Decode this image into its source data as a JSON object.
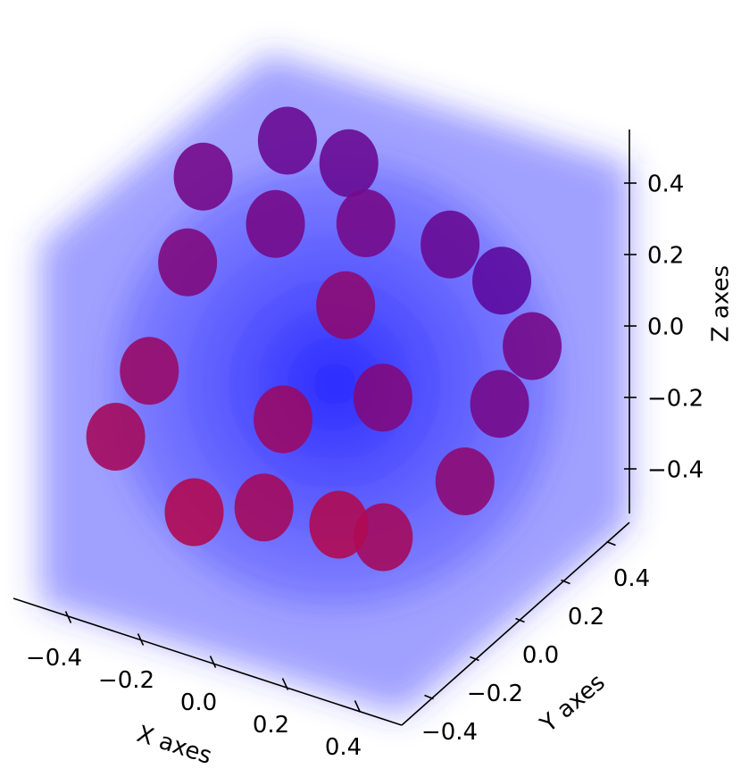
{
  "chart_data": {
    "type": "scatter3d",
    "x_label": "X axes",
    "y_label": "Y axes",
    "z_label": "Z axes",
    "xlim": [
      -0.5,
      0.5
    ],
    "ylim": [
      -0.5,
      0.5
    ],
    "zlim": [
      -0.5,
      0.5
    ],
    "xticks": [
      {
        "value": -0.4,
        "label": "−0.4"
      },
      {
        "value": -0.2,
        "label": "−0.2"
      },
      {
        "value": 0,
        "label": "0.0"
      },
      0.2,
      0.4
    ],
    "yticks": [
      {
        "value": -0.4,
        "label": "−0.4"
      },
      {
        "value": -0.2,
        "label": "−0.2"
      },
      {
        "value": 0,
        "label": "0.0"
      },
      0.2,
      0.4
    ],
    "zticks": [
      {
        "value": -0.4,
        "label": "−0.4"
      },
      {
        "value": -0.2,
        "label": "−0.2"
      },
      {
        "value": 0,
        "label": "0.0"
      },
      0.2,
      0.4
    ],
    "x": [
      0.21,
      -0.32,
      -0.15,
      0.13,
      -0.49,
      0.42,
      -0.29,
      -0.04,
      0.33,
      -0.47,
      0.07,
      0.03,
      0.36,
      -0.45,
      -0.08,
      -0.48,
      -0.07,
      0.26,
      -0.2,
      0.2
    ],
    "y": [
      0.4,
      0.3,
      0.3,
      0.3,
      0.2,
      0.2,
      0.2,
      0.2,
      0.2,
      0.1,
      0.1,
      0,
      0,
      -0.1,
      -0.1,
      -0.2,
      -0.2,
      -0.2,
      -0.3,
      -0.3
    ],
    "z": [
      0.14,
      0.42,
      0.41,
      0.27,
      0.32,
      0.13,
      0.25,
      0.33,
      -0.06,
      0.14,
      -0.07,
      0.23,
      -0.16,
      -0.05,
      -0.07,
      -0.19,
      -0.26,
      -0.24,
      -0.26,
      -0.17
    ]
  }
}
